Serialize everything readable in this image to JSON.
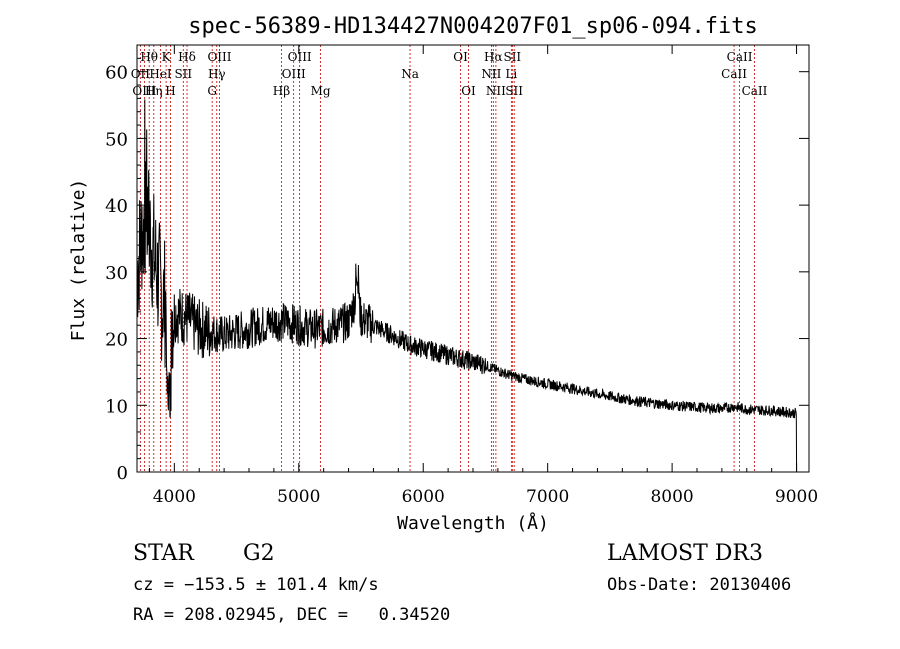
{
  "chart_data": {
    "type": "line",
    "title": "spec-56389-HD134427N004207F01_sp06-094.fits",
    "xlabel": "Wavelength (Å)",
    "ylabel": "Flux (relative)",
    "xlim": [
      3700,
      9100
    ],
    "ylim": [
      0,
      64
    ],
    "xticks": [
      4000,
      5000,
      6000,
      7000,
      8000,
      9000
    ],
    "xtick_labels": [
      "4000",
      "5000",
      "6000",
      "7000",
      "8000",
      "9000"
    ],
    "yticks": [
      0,
      10,
      20,
      30,
      40,
      50,
      60
    ],
    "ytick_labels": [
      "0",
      "10",
      "20",
      "30",
      "40",
      "50",
      "60"
    ],
    "spectrum_anchors": {
      "wavelength": [
        3700,
        3740,
        3780,
        3820,
        3860,
        3900,
        3950,
        4000,
        4100,
        4200,
        4300,
        4400,
        4500,
        4600,
        4700,
        4800,
        4900,
        5000,
        5100,
        5200,
        5300,
        5400,
        5470,
        5500,
        5600,
        5700,
        5800,
        5900,
        6000,
        6100,
        6200,
        6300,
        6400,
        6500,
        6600,
        6700,
        6800,
        6900,
        7000,
        7200,
        7400,
        7600,
        7800,
        8000,
        8200,
        8400,
        8500,
        8600,
        8700,
        8800,
        8900,
        9000
      ],
      "flux": [
        30,
        36,
        38,
        34,
        30,
        26,
        25,
        24,
        23,
        21.5,
        21,
        20.5,
        21,
        21.5,
        22,
        22.5,
        22.5,
        22,
        21.5,
        21.5,
        22,
        22.5,
        27,
        23,
        22,
        21,
        20,
        19,
        18.5,
        18,
        17.5,
        17,
        16.5,
        16,
        15.2,
        14.5,
        14,
        13.6,
        13.2,
        12.5,
        11.7,
        11,
        10.4,
        10,
        9.7,
        9.5,
        9.8,
        9.4,
        9.3,
        9.2,
        9.0,
        8.8
      ]
    },
    "lines": [
      {
        "label": "Hθ",
        "wave": 3798,
        "row": 0
      },
      {
        "label": "OII",
        "wave": 3727,
        "row": 1
      },
      {
        "label": "OIII",
        "wave": 3760,
        "row": 2
      },
      {
        "label": "Hη",
        "wave": 3835,
        "row": 2
      },
      {
        "label": "K",
        "wave": 3934,
        "row": 0
      },
      {
        "label": "HeI",
        "wave": 3889,
        "row": 1
      },
      {
        "label": "H",
        "wave": 3969,
        "row": 2
      },
      {
        "label": "SII",
        "wave": 4072,
        "row": 1
      },
      {
        "label": "Hδ",
        "wave": 4102,
        "row": 0
      },
      {
        "label": "OIII",
        "wave": 4363,
        "row": 0
      },
      {
        "label": "Hγ",
        "wave": 4341,
        "row": 1
      },
      {
        "label": "G",
        "wave": 4304,
        "row": 2
      },
      {
        "label": "Hβ",
        "wave": 4861,
        "row": 2
      },
      {
        "label": "OIII",
        "wave": 5007,
        "row": 0
      },
      {
        "label": "OIII",
        "wave": 4959,
        "row": 1
      },
      {
        "label": "Mg",
        "wave": 5175,
        "row": 2
      },
      {
        "label": "Na",
        "wave": 5894,
        "row": 1
      },
      {
        "label": "OI",
        "wave": 6300,
        "row": 0
      },
      {
        "label": "OI",
        "wave": 6364,
        "row": 2
      },
      {
        "label": "Hα",
        "wave": 6563,
        "row": 0
      },
      {
        "label": "SII",
        "wave": 6716,
        "row": 0
      },
      {
        "label": "NII",
        "wave": 6548,
        "row": 1
      },
      {
        "label": "Li",
        "wave": 6708,
        "row": 1
      },
      {
        "label": "NII",
        "wave": 6584,
        "row": 2
      },
      {
        "label": "SII",
        "wave": 6731,
        "row": 2
      },
      {
        "label": "CaII",
        "wave": 8542,
        "row": 0
      },
      {
        "label": "CaII",
        "wave": 8498,
        "row": 1
      },
      {
        "label": "CaII",
        "wave": 8662,
        "row": 2
      }
    ]
  },
  "info": {
    "object_type": "STAR",
    "subclass": "G2",
    "survey": "LAMOST DR3",
    "cz": "cz = −153.5 ± 101.4 km/s",
    "obs_date": "Obs-Date: 20130406",
    "coords": "RA = 208.02945, DEC =   0.34520"
  },
  "colors": {
    "spectrum": "#000000",
    "line_marker": "#cc0000"
  }
}
